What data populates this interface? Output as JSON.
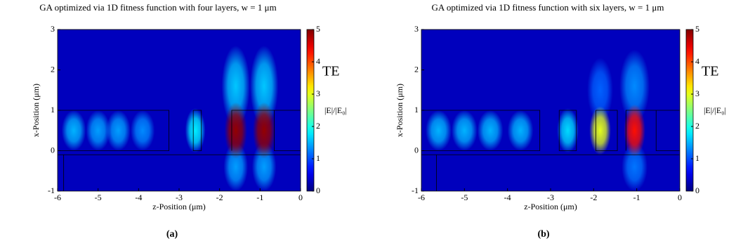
{
  "chart_data": [
    {
      "type": "heatmap",
      "title": "GA optimized via 1D fitness function with four layers, w = 1 μm",
      "xlabel": "z-Position (μm)",
      "ylabel": "x-Position (μm)",
      "xlim": [
        -6,
        0
      ],
      "ylim": [
        -1,
        3
      ],
      "xticks": [
        -6,
        -5,
        -4,
        -3,
        -2,
        -1,
        0
      ],
      "yticks": [
        -1,
        0,
        1,
        2,
        3
      ],
      "colormap": "jet",
      "background": 0.3,
      "colorbar": {
        "lim": [
          0,
          5
        ],
        "ticks": [
          0,
          1,
          2,
          3,
          4,
          5
        ],
        "label": "|E|/|E₀|"
      },
      "annotation": "TE",
      "caption": "(a)",
      "spots": {
        "z": [
          -1.6,
          -0.9,
          -1.6,
          -0.9,
          -1.6,
          -0.9,
          -5.6,
          -5.0,
          -4.5,
          -3.9,
          -2.6
        ],
        "x": [
          1.6,
          1.6,
          -0.4,
          -0.4,
          0.5,
          0.5,
          0.5,
          0.5,
          0.5,
          0.5,
          0.5
        ],
        "values": [
          1.6,
          1.6,
          1.4,
          1.4,
          4.9,
          4.9,
          1.5,
          1.4,
          1.4,
          1.3,
          1.8
        ],
        "rz": [
          0.35,
          0.35,
          0.3,
          0.3,
          0.28,
          0.28,
          0.3,
          0.3,
          0.3,
          0.3,
          0.25
        ],
        "rx": [
          1.0,
          1.0,
          0.6,
          0.6,
          0.7,
          0.7,
          0.5,
          0.5,
          0.5,
          0.5,
          0.55
        ]
      },
      "outlines": [
        {
          "z": [
            -6,
            -3.25,
            -3.25,
            -6
          ],
          "x": [
            1,
            1,
            0,
            0
          ]
        },
        {
          "z": [
            -2.65,
            -2.45,
            -2.45,
            -2.65,
            -2.65
          ],
          "x": [
            1,
            1,
            0,
            0,
            1
          ]
        },
        {
          "z": [
            -1.7,
            -1.7,
            0
          ],
          "x": [
            0,
            1,
            1
          ]
        },
        {
          "z": [
            -0.65,
            -0.65,
            0
          ],
          "x": [
            1,
            0,
            0
          ]
        },
        {
          "z": [
            -6,
            0
          ],
          "x": [
            -0.1,
            -0.1
          ]
        },
        {
          "z": [
            -5.85,
            -5.85
          ],
          "x": [
            -0.1,
            -1
          ]
        }
      ]
    },
    {
      "type": "heatmap",
      "title": "GA optimized via 1D fitness function with six layers, w = 1 μm",
      "xlabel": "z-Position (μm)",
      "ylabel": "x-Position (μm)",
      "xlim": [
        -6,
        0
      ],
      "ylim": [
        -1,
        3
      ],
      "xticks": [
        -6,
        -5,
        -4,
        -3,
        -2,
        -1,
        0
      ],
      "yticks": [
        -1,
        0,
        1,
        2,
        3
      ],
      "colormap": "jet",
      "background": 0.3,
      "colorbar": {
        "lim": [
          0,
          5
        ],
        "ticks": [
          0,
          1,
          2,
          3,
          4,
          5
        ],
        "label": "|E|/|E₀|"
      },
      "annotation": "TE",
      "caption": "(b)",
      "spots": {
        "z": [
          -1.05,
          -1.85,
          -1.05,
          -5.6,
          -5.0,
          -4.4,
          -3.7,
          -2.6,
          -1.85,
          -1.05
        ],
        "x": [
          1.6,
          1.5,
          -0.4,
          0.5,
          0.5,
          0.5,
          0.5,
          0.5,
          0.5,
          0.5
        ],
        "values": [
          1.3,
          1.1,
          1.2,
          1.5,
          1.5,
          1.5,
          1.5,
          1.7,
          3.0,
          4.3
        ],
        "rz": [
          0.35,
          0.3,
          0.3,
          0.3,
          0.3,
          0.3,
          0.3,
          0.25,
          0.25,
          0.25
        ],
        "rx": [
          0.9,
          0.8,
          0.6,
          0.5,
          0.5,
          0.5,
          0.5,
          0.55,
          0.6,
          0.65
        ]
      },
      "outlines": [
        {
          "z": [
            -6,
            -3.25,
            -3.25,
            -6
          ],
          "x": [
            1,
            1,
            0,
            0
          ]
        },
        {
          "z": [
            -2.8,
            -2.4,
            -2.4,
            -2.8,
            -2.8
          ],
          "x": [
            1,
            1,
            0,
            0,
            1
          ]
        },
        {
          "z": [
            -1.95,
            -1.45,
            -1.45,
            -1.95,
            -1.95
          ],
          "x": [
            1,
            1,
            0,
            0,
            1
          ]
        },
        {
          "z": [
            -1.25,
            -1.25,
            0
          ],
          "x": [
            0,
            1,
            1
          ]
        },
        {
          "z": [
            -0.55,
            -0.55,
            0
          ],
          "x": [
            1,
            0,
            0
          ]
        },
        {
          "z": [
            -6,
            0
          ],
          "x": [
            -0.1,
            -0.1
          ]
        },
        {
          "z": [
            -5.65,
            -5.65
          ],
          "x": [
            -0.1,
            -1
          ]
        }
      ]
    }
  ]
}
